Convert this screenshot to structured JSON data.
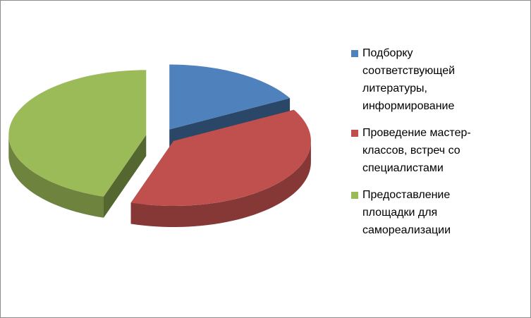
{
  "chart_data": {
    "type": "pie3d",
    "categories": [
      "Подборку соответствующей литературы, информирование",
      "Проведение мастер-классов, встреч со специалистами",
      "Предоставление площадки для самореализации"
    ],
    "values": [
      17,
      38,
      45
    ],
    "colors": [
      "#4f81bd",
      "#c0504d",
      "#9bbb59"
    ],
    "legend": "right"
  }
}
